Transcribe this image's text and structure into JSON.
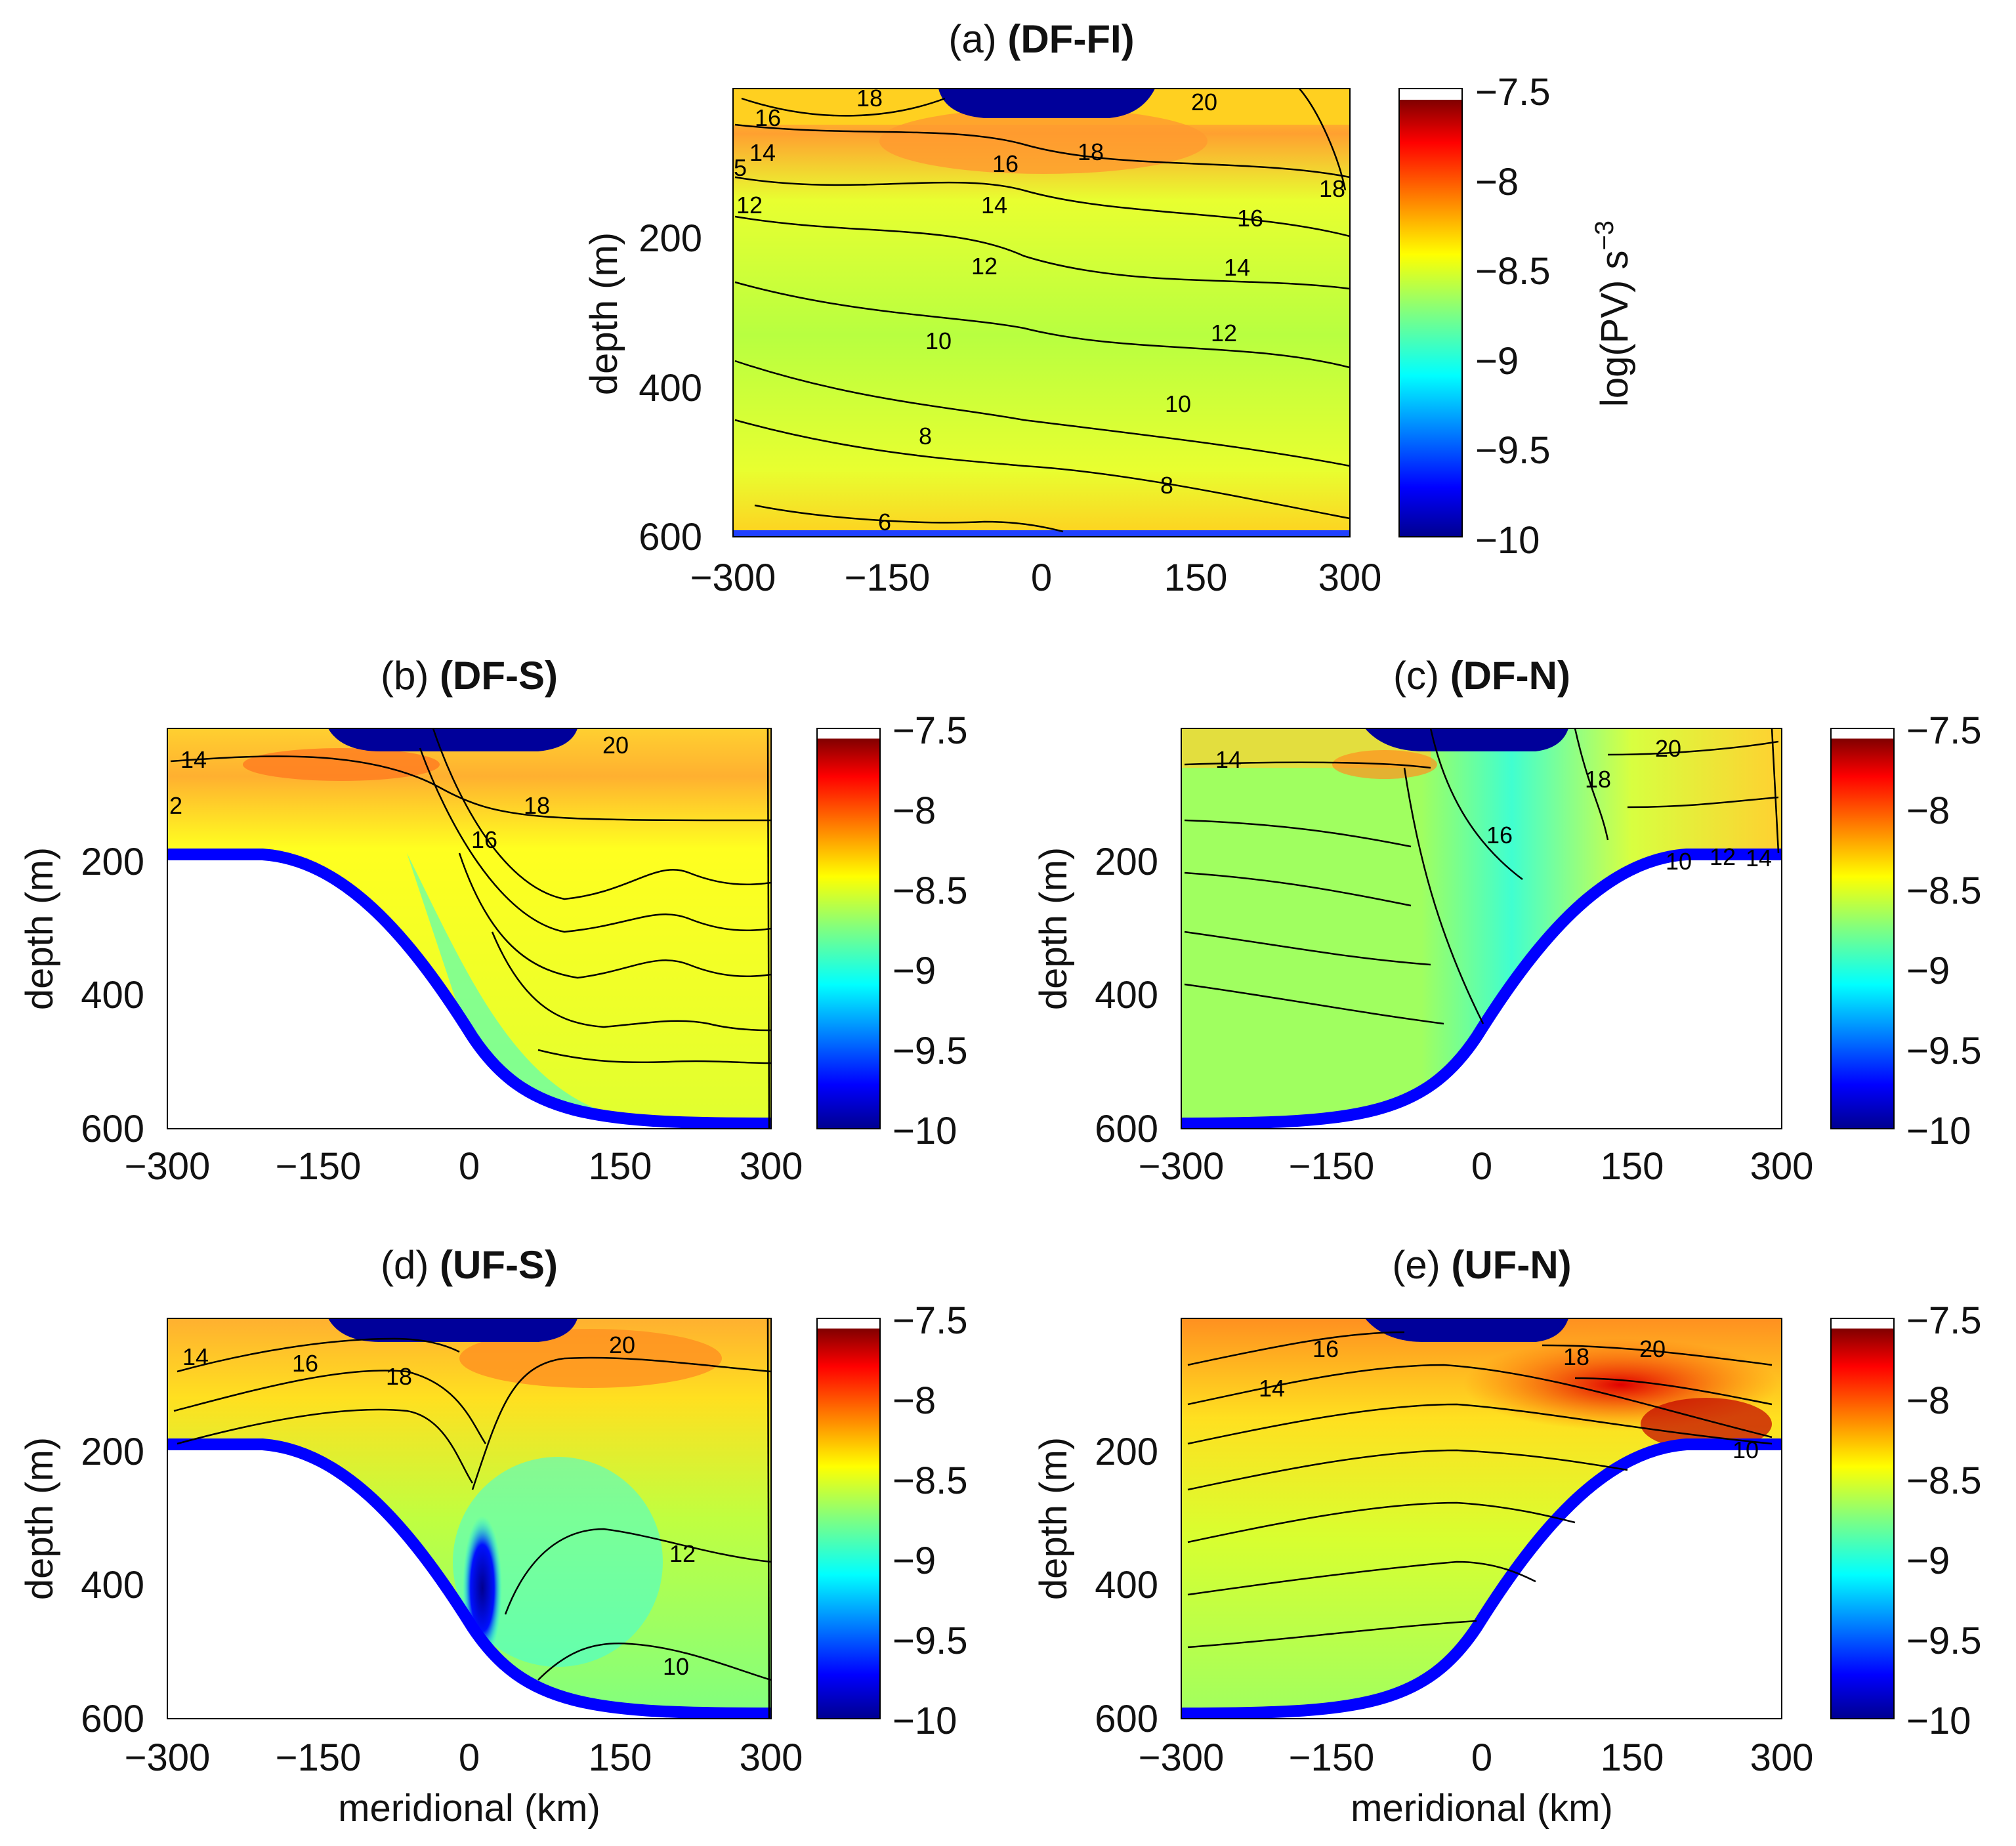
{
  "chart_data": [
    {
      "id": "a",
      "type": "heatmap",
      "title_prefix": "(a)",
      "title_bold": "(DF-FI)",
      "xlabel": "",
      "ylabel": "depth (m)",
      "xlim": [
        -300,
        300
      ],
      "ylim": [
        600,
        0
      ],
      "xticks": [
        "−300",
        "−150",
        "0",
        "150",
        "300"
      ],
      "yticks": [
        "200",
        "400",
        "600"
      ],
      "topography": "flat",
      "colorbar": {
        "label": "log(PV) s",
        "label_exp": "−3",
        "ticks": [
          "−7.5",
          "−8",
          "−8.5",
          "−9",
          "−9.5",
          "−10"
        ],
        "range": [
          -10,
          -7.5
        ]
      },
      "contour_labels": [
        "18",
        "20",
        "16",
        "14",
        "5",
        "12",
        "16",
        "18",
        "14",
        "16",
        "18",
        "12",
        "14",
        "10",
        "12",
        "8",
        "10",
        "8",
        "6"
      ]
    },
    {
      "id": "b",
      "type": "heatmap",
      "title_prefix": "(b)",
      "title_bold": "(DF-S)",
      "xlabel": "",
      "ylabel": "depth (m)",
      "xlim": [
        -300,
        300
      ],
      "ylim": [
        600,
        0
      ],
      "xticks": [
        "−300",
        "−150",
        "0",
        "150",
        "300"
      ],
      "yticks": [
        "200",
        "400",
        "600"
      ],
      "topography": "shelf south at 200 m, deep north at 600 m",
      "colorbar": {
        "ticks": [
          "−7.5",
          "−8",
          "−8.5",
          "−9",
          "−9.5",
          "−10"
        ],
        "range": [
          -10,
          -7.5
        ]
      },
      "contour_labels": [
        "14",
        "2",
        "20",
        "16",
        "18"
      ]
    },
    {
      "id": "c",
      "type": "heatmap",
      "title_prefix": "(c)",
      "title_bold": "(DF-N)",
      "xlabel": "",
      "ylabel": "depth (m)",
      "xlim": [
        -300,
        300
      ],
      "ylim": [
        600,
        0
      ],
      "xticks": [
        "−300",
        "−150",
        "0",
        "150",
        "300"
      ],
      "yticks": [
        "200",
        "400",
        "600"
      ],
      "topography": "deep south at 600 m, shelf north at 200 m",
      "colorbar": {
        "ticks": [
          "−7.5",
          "−8",
          "−8.5",
          "−9",
          "−9.5",
          "−10"
        ],
        "range": [
          -10,
          -7.5
        ]
      },
      "contour_labels": [
        "14",
        "20",
        "18",
        "16",
        "10",
        "12",
        "14"
      ]
    },
    {
      "id": "d",
      "type": "heatmap",
      "title_prefix": "(d)",
      "title_bold": "(UF-S)",
      "xlabel": "meridional (km)",
      "ylabel": "depth (m)",
      "xlim": [
        -300,
        300
      ],
      "ylim": [
        600,
        0
      ],
      "xticks": [
        "−300",
        "−150",
        "0",
        "150",
        "300"
      ],
      "yticks": [
        "200",
        "400",
        "600"
      ],
      "topography": "shelf south at 200 m, deep north at 600 m",
      "colorbar": {
        "ticks": [
          "−7.5",
          "−8",
          "−8.5",
          "−9",
          "−9.5",
          "−10"
        ],
        "range": [
          -10,
          -7.5
        ]
      },
      "contour_labels": [
        "14",
        "16",
        "18",
        "20",
        "12",
        "10"
      ]
    },
    {
      "id": "e",
      "type": "heatmap",
      "title_prefix": "(e)",
      "title_bold": "(UF-N)",
      "xlabel": "meridional (km)",
      "ylabel": "depth (m)",
      "xlim": [
        -300,
        300
      ],
      "ylim": [
        600,
        0
      ],
      "xticks": [
        "−300",
        "−150",
        "0",
        "150",
        "300"
      ],
      "yticks": [
        "200",
        "400",
        "600"
      ],
      "topography": "deep south at 600 m, shelf north at 200 m",
      "colorbar": {
        "ticks": [
          "−7.5",
          "−8",
          "−8.5",
          "−9",
          "−9.5",
          "−10"
        ],
        "range": [
          -10,
          -7.5
        ]
      },
      "contour_labels": [
        "16",
        "14",
        "18",
        "20",
        "10"
      ]
    }
  ],
  "colors": {
    "ridge": "#0000ff",
    "contour": "#000000"
  }
}
